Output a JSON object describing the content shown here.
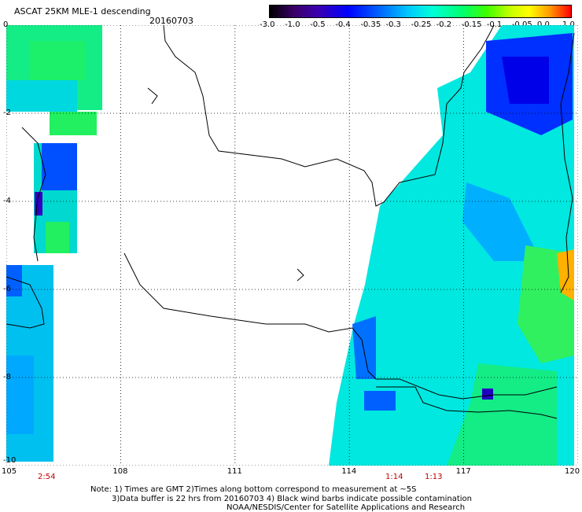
{
  "header": {
    "title": "ASCAT 25KM MLE-1 descending",
    "date": "20160703"
  },
  "colorbar": {
    "labels": [
      "-3.0",
      "-1.0",
      "-0.5",
      "-0.4",
      "-0.35",
      "-0.3",
      "-0.25",
      "-0.2",
      "-0.15",
      "-0.1",
      "-0.05",
      "0.0",
      "1.0"
    ]
  },
  "map": {
    "lon_range": [
      105,
      120
    ],
    "lat_range": [
      -10,
      0
    ],
    "lat_labels": [
      "0",
      "-2",
      "-4",
      "-6",
      "-8",
      "-10"
    ],
    "lon_labels": [
      "105",
      "108",
      "111",
      "114",
      "117",
      "120"
    ],
    "grid": "dotted",
    "coastline_color": "#000000"
  },
  "times": [
    "2:54",
    "1:14",
    "1:13"
  ],
  "notes": {
    "line1": "Note: 1) Times are GMT 2)Times along bottom correspond to measurement at ~5S",
    "line2": "3)Data buffer is 22 hrs from 20160703 4) Black wind barbs indicate possible contamination",
    "line3": "NOAA/NESDIS/Center for Satellite Applications and Research"
  }
}
